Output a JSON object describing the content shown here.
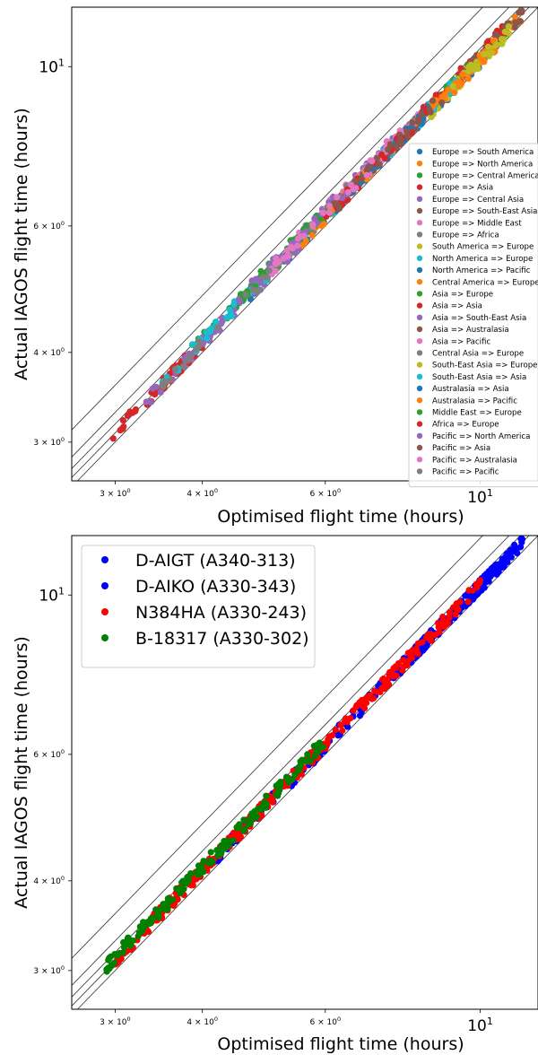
{
  "chart_data": [
    {
      "type": "scatter",
      "title": "",
      "xlabel": "Optimised flight time (hours)",
      "ylabel": "Actual IAGOS flight time (hours)",
      "xscale": "log",
      "yscale": "log",
      "xlim": [
        2.6,
        12.1
      ],
      "ylim": [
        2.65,
        12.1
      ],
      "xticks": [
        {
          "value": 3,
          "base": "3 × 10",
          "exp": "0"
        },
        {
          "value": 4,
          "base": "4 × 10",
          "exp": "0"
        },
        {
          "value": 6,
          "base": "6 × 10",
          "exp": "0"
        },
        {
          "value": 10,
          "base": "10",
          "exp": "1"
        }
      ],
      "yticks": [
        {
          "value": 3,
          "base": "3 × 10",
          "exp": "0"
        },
        {
          "value": 4,
          "base": "4 × 10",
          "exp": "0"
        },
        {
          "value": 6,
          "base": "6 × 10",
          "exp": "0"
        },
        {
          "value": 10,
          "base": "10",
          "exp": "1"
        }
      ],
      "reference_lines_ratio": [
        1.0,
        1.03,
        1.06,
        1.1,
        1.2
      ],
      "legend_position": "right",
      "legend_fontsize": "small",
      "grid": false,
      "series": [
        {
          "name": "Europe => South America",
          "color": "#1f77b4",
          "x_range": [
            8.0,
            10.5
          ],
          "ratio": 1.02,
          "n": 40
        },
        {
          "name": "Europe => North America",
          "color": "#ff7f0e",
          "x_range": [
            6.5,
            11.5
          ],
          "ratio": 1.03,
          "n": 60
        },
        {
          "name": "Europe => Central America",
          "color": "#2ca02c",
          "x_range": [
            8.5,
            11.0
          ],
          "ratio": 1.03,
          "n": 40
        },
        {
          "name": "Europe => Asia",
          "color": "#d62728",
          "x_range": [
            8.0,
            11.0
          ],
          "ratio": 1.04,
          "n": 60
        },
        {
          "name": "Europe => Central Asia",
          "color": "#9467bd",
          "x_range": [
            5.5,
            7.5
          ],
          "ratio": 1.05,
          "n": 30
        },
        {
          "name": "Europe => South-East Asia",
          "color": "#8c564b",
          "x_range": [
            9.0,
            11.5
          ],
          "ratio": 1.03,
          "n": 40
        },
        {
          "name": "Europe => Middle East",
          "color": "#e377c2",
          "x_range": [
            5.5,
            7.5
          ],
          "ratio": 1.05,
          "n": 40
        },
        {
          "name": "Europe => Africa",
          "color": "#7f7f7f",
          "x_range": [
            6.0,
            9.0
          ],
          "ratio": 1.04,
          "n": 30
        },
        {
          "name": "South America => Europe",
          "color": "#bcbd22",
          "x_range": [
            8.5,
            10.5
          ],
          "ratio": 1.02,
          "n": 30
        },
        {
          "name": "North America => Europe",
          "color": "#17becf",
          "x_range": [
            6.0,
            9.5
          ],
          "ratio": 1.03,
          "n": 40
        },
        {
          "name": "North America => Pacific",
          "color": "#1f77b4",
          "x_range": [
            4.5,
            6.5
          ],
          "ratio": 1.03,
          "n": 30
        },
        {
          "name": "Central America => Europe",
          "color": "#ff7f0e",
          "x_range": [
            8.5,
            10.5
          ],
          "ratio": 1.02,
          "n": 30
        },
        {
          "name": "Asia => Europe",
          "color": "#2ca02c",
          "x_range": [
            3.8,
            6.0
          ],
          "ratio": 1.04,
          "n": 60
        },
        {
          "name": "Asia => Asia",
          "color": "#d62728",
          "x_range": [
            2.9,
            4.0
          ],
          "ratio": 1.03,
          "n": 60
        },
        {
          "name": "Asia => South-East Asia",
          "color": "#9467bd",
          "x_range": [
            3.3,
            5.5
          ],
          "ratio": 1.03,
          "n": 70
        },
        {
          "name": "Asia => Australasia",
          "color": "#8c564b",
          "x_range": [
            6.5,
            9.0
          ],
          "ratio": 1.03,
          "n": 40
        },
        {
          "name": "Asia => Pacific",
          "color": "#e377c2",
          "x_range": [
            6.0,
            8.5
          ],
          "ratio": 1.04,
          "n": 40
        },
        {
          "name": "Central Asia => Europe",
          "color": "#7f7f7f",
          "x_range": [
            5.0,
            6.5
          ],
          "ratio": 1.04,
          "n": 20
        },
        {
          "name": "South-East Asia => Europe",
          "color": "#bcbd22",
          "x_range": [
            9.0,
            11.0
          ],
          "ratio": 1.02,
          "n": 20
        },
        {
          "name": "South-East Asia => Asia",
          "color": "#17becf",
          "x_range": [
            3.5,
            5.0
          ],
          "ratio": 1.04,
          "n": 30
        },
        {
          "name": "Australasia => Asia",
          "color": "#1f77b4",
          "x_range": [
            6.5,
            8.5
          ],
          "ratio": 1.03,
          "n": 30
        },
        {
          "name": "Australasia => Pacific",
          "color": "#ff7f0e",
          "x_range": [
            5.5,
            7.0
          ],
          "ratio": 1.03,
          "n": 20
        },
        {
          "name": "Middle East => Europe",
          "color": "#2ca02c",
          "x_range": [
            4.5,
            6.0
          ],
          "ratio": 1.05,
          "n": 30
        },
        {
          "name": "Africa => Europe",
          "color": "#d62728",
          "x_range": [
            6.0,
            8.5
          ],
          "ratio": 1.03,
          "n": 30
        },
        {
          "name": "Pacific => North America",
          "color": "#9467bd",
          "x_range": [
            4.5,
            6.5
          ],
          "ratio": 1.05,
          "n": 30
        },
        {
          "name": "Pacific => Asia",
          "color": "#8c564b",
          "x_range": [
            6.0,
            8.5
          ],
          "ratio": 1.03,
          "n": 30
        },
        {
          "name": "Pacific => Australasia",
          "color": "#e377c2",
          "x_range": [
            5.0,
            7.0
          ],
          "ratio": 1.04,
          "n": 30
        },
        {
          "name": "Pacific => Pacific",
          "color": "#7f7f7f",
          "x_range": [
            3.5,
            5.0
          ],
          "ratio": 1.03,
          "n": 20
        }
      ]
    },
    {
      "type": "scatter",
      "title": "",
      "xlabel": "Optimised flight time (hours)",
      "ylabel": "Actual IAGOS flight time (hours)",
      "xscale": "log",
      "yscale": "log",
      "xlim": [
        2.6,
        12.1
      ],
      "ylim": [
        2.65,
        12.1
      ],
      "xticks": [
        {
          "value": 3,
          "base": "3 × 10",
          "exp": "0"
        },
        {
          "value": 4,
          "base": "4 × 10",
          "exp": "0"
        },
        {
          "value": 6,
          "base": "6 × 10",
          "exp": "0"
        },
        {
          "value": 10,
          "base": "10",
          "exp": "1"
        }
      ],
      "yticks": [
        {
          "value": 3,
          "base": "3 × 10",
          "exp": "0"
        },
        {
          "value": 4,
          "base": "4 × 10",
          "exp": "0"
        },
        {
          "value": 6,
          "base": "6 × 10",
          "exp": "0"
        },
        {
          "value": 10,
          "base": "10",
          "exp": "1"
        }
      ],
      "reference_lines_ratio": [
        1.0,
        1.03,
        1.06,
        1.1,
        1.2
      ],
      "legend_position": "upper left",
      "legend_fontsize": "large",
      "grid": false,
      "series": [
        {
          "name": "D-AIGT (A340-313)",
          "color": "#0000ff",
          "x_range": [
            8.0,
            11.5
          ],
          "ratio": 1.03,
          "n": 150
        },
        {
          "name": "D-AIKO (A330-343)",
          "color": "#0000ff",
          "x_range": [
            4.0,
            10.0
          ],
          "ratio": 1.03,
          "n": 120
        },
        {
          "name": "N384HA (A330-243)",
          "color": "#ff0000",
          "x_range": [
            3.0,
            10.0
          ],
          "ratio": 1.035,
          "n": 300
        },
        {
          "name": "B-18317 (A330-302)",
          "color": "#008000",
          "x_range": [
            2.9,
            6.0
          ],
          "ratio": 1.045,
          "n": 150
        }
      ]
    }
  ]
}
